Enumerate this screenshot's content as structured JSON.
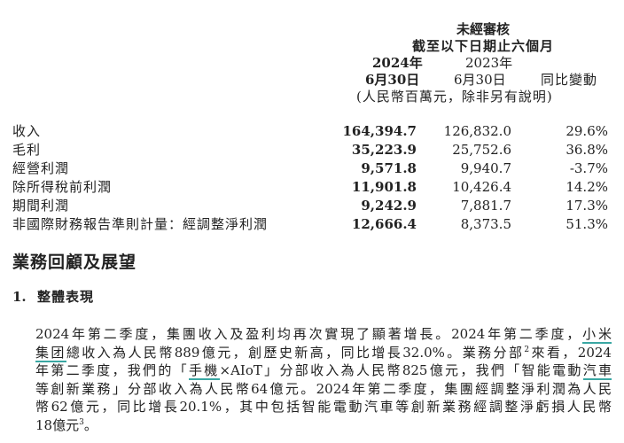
{
  "header": {
    "audit": "未經審核",
    "period": "截至以下日期止六個月",
    "col1_year": "2024年",
    "col1_date": "6月30日",
    "col2_year": "2023年",
    "col2_date": "6月30日",
    "col3": "同比變動",
    "unit_note": "(人民幣百萬元，除非另有說明)"
  },
  "rows": [
    {
      "label": "收入",
      "v2024": "164,394.7",
      "v2023": "126,832.0",
      "change": "29.6%"
    },
    {
      "label": "毛利",
      "v2024": "35,223.9",
      "v2023": "25,752.6",
      "change": "36.8%"
    },
    {
      "label": "經營利潤",
      "v2024": "9,571.8",
      "v2023": "9,940.7",
      "change": "-3.7%"
    },
    {
      "label": "除所得稅前利潤",
      "v2024": "11,901.8",
      "v2023": "10,426.4",
      "change": "14.2%"
    },
    {
      "label": "期間利潤",
      "v2024": "9,242.9",
      "v2023": "7,881.7",
      "change": "17.3%"
    },
    {
      "label": "非國際財務報告準則計量：經調整淨利潤",
      "v2024": "12,666.4",
      "v2023": "8,373.5",
      "change": "51.3%"
    }
  ],
  "section_title": "業務回顧及展望",
  "subsection": {
    "number": "1.",
    "title": "整體表現"
  },
  "paragraph": [
    {
      "a": "2024年第二季度，集團收入及盈利均再次實現了顯著增長。2024年第二季度，",
      "u": "小米"
    },
    {
      "u": "集团",
      "a": "總收入為人民幣889億元，創歷史新高，同比增長32.0%。業務分部",
      "sup": "2",
      "b": "來看，2024"
    },
    {
      "a": "年第二季度，我們的「",
      "u": "手機",
      "b": "×AIoT」分部收入為人民幣825億元，我們「智能電動",
      "u2": "汽車"
    },
    {
      "a": "等創新業務」分部收入為人民幣64億元。2024年第二季度，集團經調整淨利潤為人民"
    },
    {
      "a": "幣62億元，同比增長20.1%，其中包括智能電動汽車等創新業務經調整淨虧損人民幣"
    },
    {
      "a": "18億元",
      "sup": "3",
      "b": "。"
    }
  ],
  "colors": {
    "underline": "#3aa7a3"
  }
}
